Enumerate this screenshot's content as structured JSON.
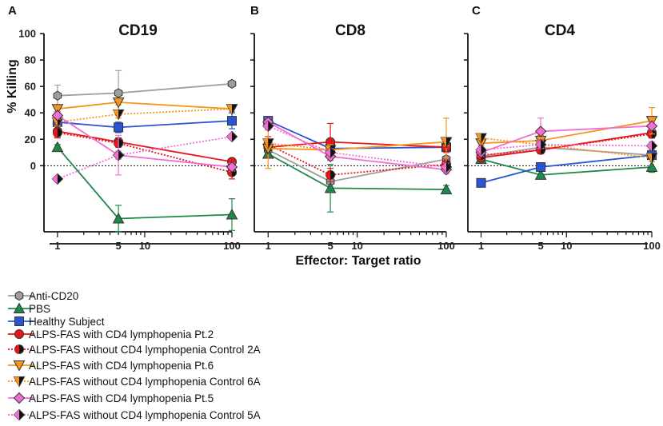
{
  "chart_data": {
    "type": "line",
    "ylabel": "% Killing",
    "xlabel": "Effector: Target ratio",
    "x_scale": "log",
    "xlim": [
      0.7,
      100
    ],
    "ylim": [
      -50,
      100
    ],
    "x_ticks": [
      1,
      5,
      10,
      100
    ],
    "x_tick_labels": [
      "1",
      "5",
      "10",
      "100"
    ],
    "y_ticks": [
      0,
      20,
      40,
      60,
      80,
      100
    ],
    "y_tick_labels": [
      "0",
      "20",
      "40",
      "60",
      "80",
      "100"
    ],
    "zero_line": "dotted",
    "panels": [
      {
        "label": "A",
        "title": "CD19",
        "series": [
          {
            "name": "Anti-CD20",
            "x": [
              1,
              5,
              100
            ],
            "y": [
              53,
              55,
              62
            ],
            "err": [
              8,
              17,
              1
            ]
          },
          {
            "name": "PBS",
            "x": [
              1,
              5,
              100
            ],
            "y": [
              14,
              -40,
              -37
            ],
            "err": [
              2,
              10,
              12
            ]
          },
          {
            "name": "Healthy Subject",
            "x": [
              1,
              5,
              100
            ],
            "y": [
              33,
              29,
              34
            ],
            "err": [
              5,
              4,
              6
            ]
          },
          {
            "name": "ALPS-FAS with CD4 lymphopenia Pt.2",
            "x": [
              1,
              5,
              100
            ],
            "y": [
              26,
              18,
              3
            ],
            "err": [
              5,
              3,
              2
            ]
          },
          {
            "name": "ALPS-FAS without CD4 lymphopenia Control 2A",
            "x": [
              1,
              5,
              100
            ],
            "y": [
              25,
              17,
              -5
            ],
            "err": [
              3,
              3,
              5
            ]
          },
          {
            "name": "ALPS-FAS with CD4 lymphopenia Pt.6",
            "x": [
              1,
              5,
              100
            ],
            "y": [
              43,
              48,
              43
            ],
            "err": [
              3,
              2,
              2
            ]
          },
          {
            "name": "ALPS-FAS without CD4 lymphopenia Control 6A",
            "x": [
              1,
              5,
              100
            ],
            "y": [
              33,
              39,
              43
            ],
            "err": [
              3,
              3,
              2
            ]
          },
          {
            "name": "ALPS-FAS with CD4 lymphopenia Pt.5",
            "x": [
              1,
              5,
              100
            ],
            "y": [
              38,
              8,
              -1
            ],
            "err": [
              3,
              15,
              3
            ]
          },
          {
            "name": "ALPS-FAS without CD4 lymphopenia Control 5A",
            "x": [
              1,
              5,
              100
            ],
            "y": [
              -10,
              8,
              22
            ],
            "err": [
              2,
              3,
              2
            ]
          }
        ]
      },
      {
        "label": "B",
        "title": "CD8",
        "series": [
          {
            "name": "Anti-CD20",
            "x": [
              1,
              5,
              100
            ],
            "y": [
              12,
              -12,
              5
            ],
            "err": [
              3,
              4,
              8
            ]
          },
          {
            "name": "PBS",
            "x": [
              1,
              5,
              100
            ],
            "y": [
              9,
              -17,
              -18
            ],
            "err": [
              3,
              18,
              3
            ]
          },
          {
            "name": "Healthy Subject",
            "x": [
              1,
              5,
              100
            ],
            "y": [
              34,
              13,
              14
            ],
            "err": [
              3,
              3,
              3
            ]
          },
          {
            "name": "ALPS-FAS with CD4 lymphopenia Pt.2",
            "x": [
              1,
              5,
              100
            ],
            "y": [
              14,
              18,
              14
            ],
            "err": [
              8,
              14,
              4
            ]
          },
          {
            "name": "ALPS-FAS without CD4 lymphopenia Control 2A",
            "x": [
              1,
              5,
              100
            ],
            "y": [
              16,
              -7,
              1
            ],
            "err": [
              4,
              5,
              4
            ]
          },
          {
            "name": "ALPS-FAS with CD4 lymphopenia Pt.6",
            "x": [
              1,
              5,
              100
            ],
            "y": [
              13,
              12,
              18
            ],
            "err": [
              15,
              4,
              18
            ]
          },
          {
            "name": "ALPS-FAS without CD4 lymphopenia Control 6A",
            "x": [
              1,
              5,
              100
            ],
            "y": [
              17,
              12,
              18
            ],
            "err": [
              3,
              3,
              3
            ]
          },
          {
            "name": "ALPS-FAS with CD4 lymphopenia Pt.5",
            "x": [
              1,
              5,
              100
            ],
            "y": [
              33,
              7,
              -3
            ],
            "err": [
              3,
              3,
              3
            ]
          },
          {
            "name": "ALPS-FAS without CD4 lymphopenia Control 5A",
            "x": [
              1,
              5,
              100
            ],
            "y": [
              30,
              10,
              -1
            ],
            "err": [
              3,
              3,
              3
            ]
          }
        ]
      },
      {
        "label": "C",
        "title": "CD4",
        "series": [
          {
            "name": "Anti-CD20",
            "x": [
              1,
              5,
              100
            ],
            "y": [
              7,
              14,
              8
            ],
            "err": [
              3,
              3,
              3
            ]
          },
          {
            "name": "PBS",
            "x": [
              1,
              5,
              100
            ],
            "y": [
              5,
              -7,
              -1
            ],
            "err": [
              3,
              3,
              4
            ]
          },
          {
            "name": "Healthy Subject",
            "x": [
              1,
              5,
              100
            ],
            "y": [
              -13,
              -1,
              8
            ],
            "err": [
              2,
              2,
              3
            ]
          },
          {
            "name": "ALPS-FAS with CD4 lymphopenia Pt.2",
            "x": [
              1,
              5,
              100
            ],
            "y": [
              6,
              12,
              25
            ],
            "err": [
              3,
              3,
              4
            ]
          },
          {
            "name": "ALPS-FAS without CD4 lymphopenia Control 2A",
            "x": [
              1,
              5,
              100
            ],
            "y": [
              8,
              12,
              24
            ],
            "err": [
              3,
              3,
              3
            ]
          },
          {
            "name": "ALPS-FAS with CD4 lymphopenia Pt.6",
            "x": [
              1,
              5,
              100
            ],
            "y": [
              17,
              19,
              34
            ],
            "err": [
              4,
              4,
              10
            ]
          },
          {
            "name": "ALPS-FAS without CD4 lymphopenia Control 6A",
            "x": [
              1,
              5,
              100
            ],
            "y": [
              21,
              16,
              6
            ],
            "err": [
              3,
              3,
              3
            ]
          },
          {
            "name": "ALPS-FAS with CD4 lymphopenia Pt.5",
            "x": [
              1,
              5,
              100
            ],
            "y": [
              10,
              26,
              30
            ],
            "err": [
              3,
              10,
              3
            ]
          },
          {
            "name": "ALPS-FAS without CD4 lymphopenia Control 5A",
            "x": [
              1,
              5,
              100
            ],
            "y": [
              12,
              16,
              15
            ],
            "err": [
              3,
              3,
              3
            ]
          }
        ]
      }
    ],
    "legend": [
      {
        "name": "Anti-CD20",
        "color": "#9e9e9e",
        "marker": "hexagon",
        "dash": "solid"
      },
      {
        "name": "PBS",
        "color": "#1e8a4a",
        "marker": "triangle-up",
        "dash": "solid"
      },
      {
        "name": "Healthy Subject",
        "color": "#2a54d6",
        "marker": "square",
        "dash": "solid"
      },
      {
        "name": "ALPS-FAS with CD4 lymphopenia Pt.2",
        "color": "#e8151b",
        "marker": "circle",
        "dash": "solid"
      },
      {
        "name": "ALPS-FAS without CD4 lymphopenia Control 2A",
        "color": "#e8151b",
        "marker": "circle-half",
        "dash": "dotted"
      },
      {
        "name": "ALPS-FAS with CD4 lymphopenia Pt.6",
        "color": "#f5961c",
        "marker": "triangle-down",
        "dash": "solid"
      },
      {
        "name": "ALPS-FAS without CD4 lymphopenia Control 6A",
        "color": "#f5961c",
        "marker": "triangle-down-half",
        "dash": "dotted"
      },
      {
        "name": "ALPS-FAS with CD4 lymphopenia Pt.5",
        "color": "#f16fd2",
        "marker": "diamond",
        "dash": "solid"
      },
      {
        "name": "ALPS-FAS without CD4 lymphopenia Control 5A",
        "color": "#f16fd2",
        "marker": "diamond-half",
        "dash": "dotted"
      }
    ]
  }
}
